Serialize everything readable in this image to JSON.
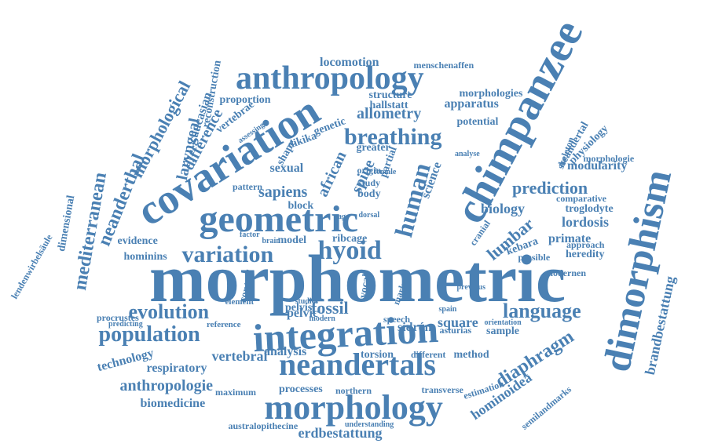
{
  "colors": {
    "word": "#4a80b3",
    "background": "#ffffff"
  },
  "words": [
    "morphometric",
    "integration",
    "dimorphism",
    "chimpanzee",
    "covariation",
    "geometric",
    "anthropology",
    "morphology",
    "neandertals",
    "variation",
    "hyoid",
    "human",
    "breathing",
    "population",
    "language",
    "evolution",
    "diaphragm",
    "prediction",
    "lumbar",
    "brandbestattung",
    "mediterranean",
    "neanderthal",
    "morphological",
    "hominoidea",
    "anthropologie",
    "fossil",
    "spine",
    "african",
    "sapiens",
    "allometry",
    "erdbestattung",
    "biomedicine",
    "technology",
    "vertebral",
    "respiratory",
    "square",
    "processes",
    "sidrón",
    "transverse",
    "analysis",
    "pelvic",
    "biology",
    "lordosis",
    "modularity",
    "primate",
    "heredity",
    "kebara",
    "laryngeal",
    "difference",
    "caucasian",
    "reconstruction",
    "dimensional",
    "lendenwirbelsäule",
    "locomotion",
    "menschenaffen",
    "apparatus",
    "potential",
    "neandertal",
    "physiology",
    "skeleton",
    "morphologie",
    "troglodyte",
    "comparative",
    "approach",
    "possible",
    "sample",
    "method",
    "torsion",
    "different",
    "northern",
    "estimation",
    "semilandmarks",
    "australopithecine",
    "understanding",
    "maximum",
    "procrustes",
    "predicting",
    "reference",
    "element",
    "control",
    "evidence",
    "hominins",
    "model",
    "brain",
    "ribcage",
    "body",
    "study",
    "origin",
    "partial",
    "greater",
    "sexual",
    "shape",
    "dikika",
    "genetic",
    "vertebrae",
    "proportion",
    "structure",
    "hallstatt",
    "morphologies",
    "science",
    "block",
    "pattern",
    "cranial",
    "modernen",
    "asturias",
    "speech",
    "marker",
    "vocal",
    "modern",
    "pelvis",
    "factor",
    "previous",
    "analyse",
    "female",
    "cage",
    "dorsal",
    "assessing",
    "orientation",
    "studies",
    "spain"
  ]
}
